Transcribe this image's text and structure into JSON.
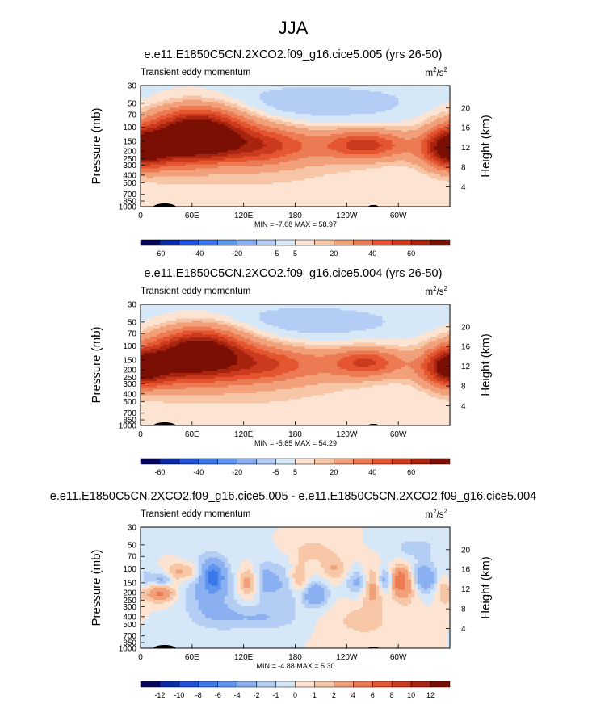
{
  "main_title": "JJA",
  "chart_data": [
    {
      "type": "heatmap",
      "title": "e.e11.E1850C5CN.2XCO2.f09_g16.cice5.005 (yrs 26-50)",
      "variable_label": "Transient eddy momentum",
      "units_base": "m",
      "units_exp1": "2",
      "units_sep": "/s",
      "units_exp2": "2",
      "ylabel": "Pressure (mb)",
      "ylabel_right": "Height (km)",
      "yticks": [
        "30",
        "50",
        "70",
        "100",
        "150",
        "200",
        "250",
        "300",
        "400",
        "500",
        "700",
        "850",
        "1000"
      ],
      "ytick_values": [
        30,
        50,
        70,
        100,
        150,
        200,
        250,
        300,
        400,
        500,
        700,
        850,
        1000
      ],
      "yticks_right": [
        "20",
        "16",
        "12",
        "8",
        "4"
      ],
      "yticks_right_values": [
        20,
        16,
        12,
        8,
        4
      ],
      "xticks": [
        "0",
        "60E",
        "120E",
        "180",
        "120W",
        "60W"
      ],
      "xtick_values": [
        0,
        60,
        120,
        180,
        240,
        300
      ],
      "xlim": [
        0,
        360
      ],
      "ylim": [
        1000,
        30
      ],
      "stats": "MIN =  -7.08  MAX =  58.97",
      "colorbar_labels": [
        "-60",
        "-40",
        "-20",
        "-5",
        "5",
        "20",
        "40",
        "60"
      ],
      "colorbar_levels": [
        -70,
        -60,
        -50,
        -40,
        -30,
        -20,
        -10,
        -5,
        0,
        5,
        10,
        20,
        30,
        40,
        50,
        60,
        70
      ],
      "features": [
        {
          "lon": 65,
          "p": 100,
          "value": 58.97,
          "rx": 38,
          "ry": 0.45
        },
        {
          "lon": 95,
          "p": 160,
          "value": 35,
          "rx": 60,
          "ry": 0.45
        },
        {
          "lon": 35,
          "p": 190,
          "value": 30,
          "rx": 50,
          "ry": 0.4
        },
        {
          "lon": 150,
          "p": 175,
          "value": 16,
          "rx": 30,
          "ry": 0.35
        },
        {
          "lon": 265,
          "p": 165,
          "value": 32,
          "rx": 28,
          "ry": 0.28
        },
        {
          "lon": 230,
          "p": 170,
          "value": 16,
          "rx": 45,
          "ry": 0.35
        },
        {
          "lon": 355,
          "p": 185,
          "value": 32,
          "rx": 18,
          "ry": 0.4
        },
        {
          "lon": 10,
          "p": 190,
          "value": 22,
          "rx": 18,
          "ry": 0.35
        },
        {
          "lon": 180,
          "p": 500,
          "value": 4,
          "rx": 200,
          "ry": 0.9
        },
        {
          "lon": 130,
          "p": 60,
          "value": -5,
          "rx": 80,
          "ry": 0.5
        },
        {
          "lon": 240,
          "p": 50,
          "value": -6,
          "rx": 90,
          "ry": 0.5
        },
        {
          "lon": 310,
          "p": 400,
          "value": -4,
          "rx": 40,
          "ry": 0.4
        },
        {
          "lon": 90,
          "p": 320,
          "value": -3,
          "rx": 20,
          "ry": 0.2
        }
      ]
    },
    {
      "type": "heatmap",
      "title": "e.e11.E1850C5CN.2XCO2.f09_g16.cice5.004 (yrs 26-50)",
      "variable_label": "Transient eddy momentum",
      "units_base": "m",
      "units_exp1": "2",
      "units_sep": "/s",
      "units_exp2": "2",
      "ylabel": "Pressure (mb)",
      "ylabel_right": "Height (km)",
      "yticks": [
        "30",
        "50",
        "70",
        "100",
        "150",
        "200",
        "250",
        "300",
        "400",
        "500",
        "700",
        "850",
        "1000"
      ],
      "ytick_values": [
        30,
        50,
        70,
        100,
        150,
        200,
        250,
        300,
        400,
        500,
        700,
        850,
        1000
      ],
      "yticks_right": [
        "20",
        "16",
        "12",
        "8",
        "4"
      ],
      "yticks_right_values": [
        20,
        16,
        12,
        8,
        4
      ],
      "xticks": [
        "0",
        "60E",
        "120E",
        "180",
        "120W",
        "60W"
      ],
      "xtick_values": [
        0,
        60,
        120,
        180,
        240,
        300
      ],
      "xlim": [
        0,
        360
      ],
      "ylim": [
        1000,
        30
      ],
      "stats": "MIN =  -5.85  MAX =  54.29",
      "colorbar_labels": [
        "-60",
        "-40",
        "-20",
        "-5",
        "5",
        "20",
        "40",
        "60"
      ],
      "colorbar_levels": [
        -70,
        -60,
        -50,
        -40,
        -30,
        -20,
        -10,
        -5,
        0,
        5,
        10,
        20,
        30,
        40,
        50,
        60,
        70
      ],
      "features": [
        {
          "lon": 68,
          "p": 100,
          "value": 54.29,
          "rx": 36,
          "ry": 0.42
        },
        {
          "lon": 95,
          "p": 160,
          "value": 32,
          "rx": 60,
          "ry": 0.45
        },
        {
          "lon": 35,
          "p": 190,
          "value": 30,
          "rx": 50,
          "ry": 0.4
        },
        {
          "lon": 150,
          "p": 175,
          "value": 15,
          "rx": 30,
          "ry": 0.35
        },
        {
          "lon": 265,
          "p": 160,
          "value": 30,
          "rx": 26,
          "ry": 0.28
        },
        {
          "lon": 225,
          "p": 170,
          "value": 15,
          "rx": 45,
          "ry": 0.35
        },
        {
          "lon": 355,
          "p": 185,
          "value": 30,
          "rx": 18,
          "ry": 0.4
        },
        {
          "lon": 10,
          "p": 190,
          "value": 22,
          "rx": 18,
          "ry": 0.35
        },
        {
          "lon": 180,
          "p": 500,
          "value": 4,
          "rx": 200,
          "ry": 0.9
        },
        {
          "lon": 130,
          "p": 60,
          "value": -5,
          "rx": 80,
          "ry": 0.5
        },
        {
          "lon": 240,
          "p": 50,
          "value": -5,
          "rx": 90,
          "ry": 0.5
        },
        {
          "lon": 310,
          "p": 400,
          "value": -4,
          "rx": 40,
          "ry": 0.4
        }
      ]
    },
    {
      "type": "heatmap",
      "title": "e.e11.E1850C5CN.2XCO2.f09_g16.cice5.005 - e.e11.E1850C5CN.2XCO2.f09_g16.cice5.004",
      "variable_label": "Transient eddy momentum",
      "units_base": "m",
      "units_exp1": "2",
      "units_sep": "/s",
      "units_exp2": "2",
      "ylabel": "Pressure (mb)",
      "ylabel_right": "Height (km)",
      "yticks": [
        "30",
        "50",
        "70",
        "100",
        "150",
        "200",
        "250",
        "300",
        "400",
        "500",
        "700",
        "850",
        "1000"
      ],
      "ytick_values": [
        30,
        50,
        70,
        100,
        150,
        200,
        250,
        300,
        400,
        500,
        700,
        850,
        1000
      ],
      "yticks_right": [
        "20",
        "16",
        "12",
        "8",
        "4"
      ],
      "yticks_right_values": [
        20,
        16,
        12,
        8,
        4
      ],
      "xticks": [
        "0",
        "60E",
        "120E",
        "180",
        "120W",
        "60W"
      ],
      "xtick_values": [
        0,
        60,
        120,
        180,
        240,
        300
      ],
      "xlim": [
        0,
        360
      ],
      "ylim": [
        1000,
        30
      ],
      "stats": "MIN =  -4.88  MAX =   5.30",
      "colorbar_labels": [
        "-12",
        "-10",
        "-8",
        "-6",
        "-4",
        "-2",
        "-1",
        "0",
        "1",
        "2",
        "4",
        "6",
        "8",
        "10",
        "12"
      ],
      "colorbar_levels": [
        -14,
        -12,
        -10,
        -8,
        -6,
        -4,
        -2,
        -1,
        0,
        1,
        2,
        4,
        6,
        8,
        10,
        12,
        14
      ],
      "features": [
        {
          "lon": 85,
          "p": 125,
          "value": -4.8,
          "rx": 8,
          "ry": 0.3
        },
        {
          "lon": 80,
          "p": 160,
          "value": -3,
          "rx": 20,
          "ry": 0.6
        },
        {
          "lon": 22,
          "p": 200,
          "value": 4.5,
          "rx": 12,
          "ry": 0.18
        },
        {
          "lon": 25,
          "p": 140,
          "value": -3,
          "rx": 8,
          "ry": 0.15
        },
        {
          "lon": 5,
          "p": 150,
          "value": -2,
          "rx": 6,
          "ry": 0.3
        },
        {
          "lon": 40,
          "p": 110,
          "value": 2,
          "rx": 8,
          "ry": 0.2
        },
        {
          "lon": 58,
          "p": 110,
          "value": 2.5,
          "rx": 10,
          "ry": 0.2
        },
        {
          "lon": 125,
          "p": 150,
          "value": 3,
          "rx": 8,
          "ry": 0.3
        },
        {
          "lon": 145,
          "p": 140,
          "value": -2.5,
          "rx": 10,
          "ry": 0.4
        },
        {
          "lon": 170,
          "p": 160,
          "value": -2,
          "rx": 12,
          "ry": 0.5
        },
        {
          "lon": 183,
          "p": 130,
          "value": 3,
          "rx": 8,
          "ry": 0.3
        },
        {
          "lon": 204,
          "p": 210,
          "value": -4,
          "rx": 10,
          "ry": 0.25
        },
        {
          "lon": 225,
          "p": 100,
          "value": 2,
          "rx": 10,
          "ry": 0.25
        },
        {
          "lon": 255,
          "p": 150,
          "value": -3,
          "rx": 10,
          "ry": 0.25
        },
        {
          "lon": 270,
          "p": 160,
          "value": 4,
          "rx": 9,
          "ry": 0.35
        },
        {
          "lon": 285,
          "p": 140,
          "value": -4,
          "rx": 9,
          "ry": 0.25
        },
        {
          "lon": 300,
          "p": 140,
          "value": 5.3,
          "rx": 8,
          "ry": 0.28
        },
        {
          "lon": 310,
          "p": 170,
          "value": 2,
          "rx": 10,
          "ry": 0.4
        },
        {
          "lon": 330,
          "p": 130,
          "value": -4,
          "rx": 10,
          "ry": 0.3
        },
        {
          "lon": 355,
          "p": 190,
          "value": 2,
          "rx": 8,
          "ry": 0.3
        },
        {
          "lon": 150,
          "p": 420,
          "value": -1.5,
          "rx": 25,
          "ry": 0.25
        },
        {
          "lon": 260,
          "p": 450,
          "value": 1.5,
          "rx": 25,
          "ry": 0.35
        },
        {
          "lon": 100,
          "p": 400,
          "value": -1.5,
          "rx": 30,
          "ry": 0.3
        },
        {
          "lon": 200,
          "p": 60,
          "value": 1.5,
          "rx": 20,
          "ry": 0.25
        },
        {
          "lon": 320,
          "p": 55,
          "value": -1.5,
          "rx": 20,
          "ry": 0.25
        }
      ]
    }
  ]
}
